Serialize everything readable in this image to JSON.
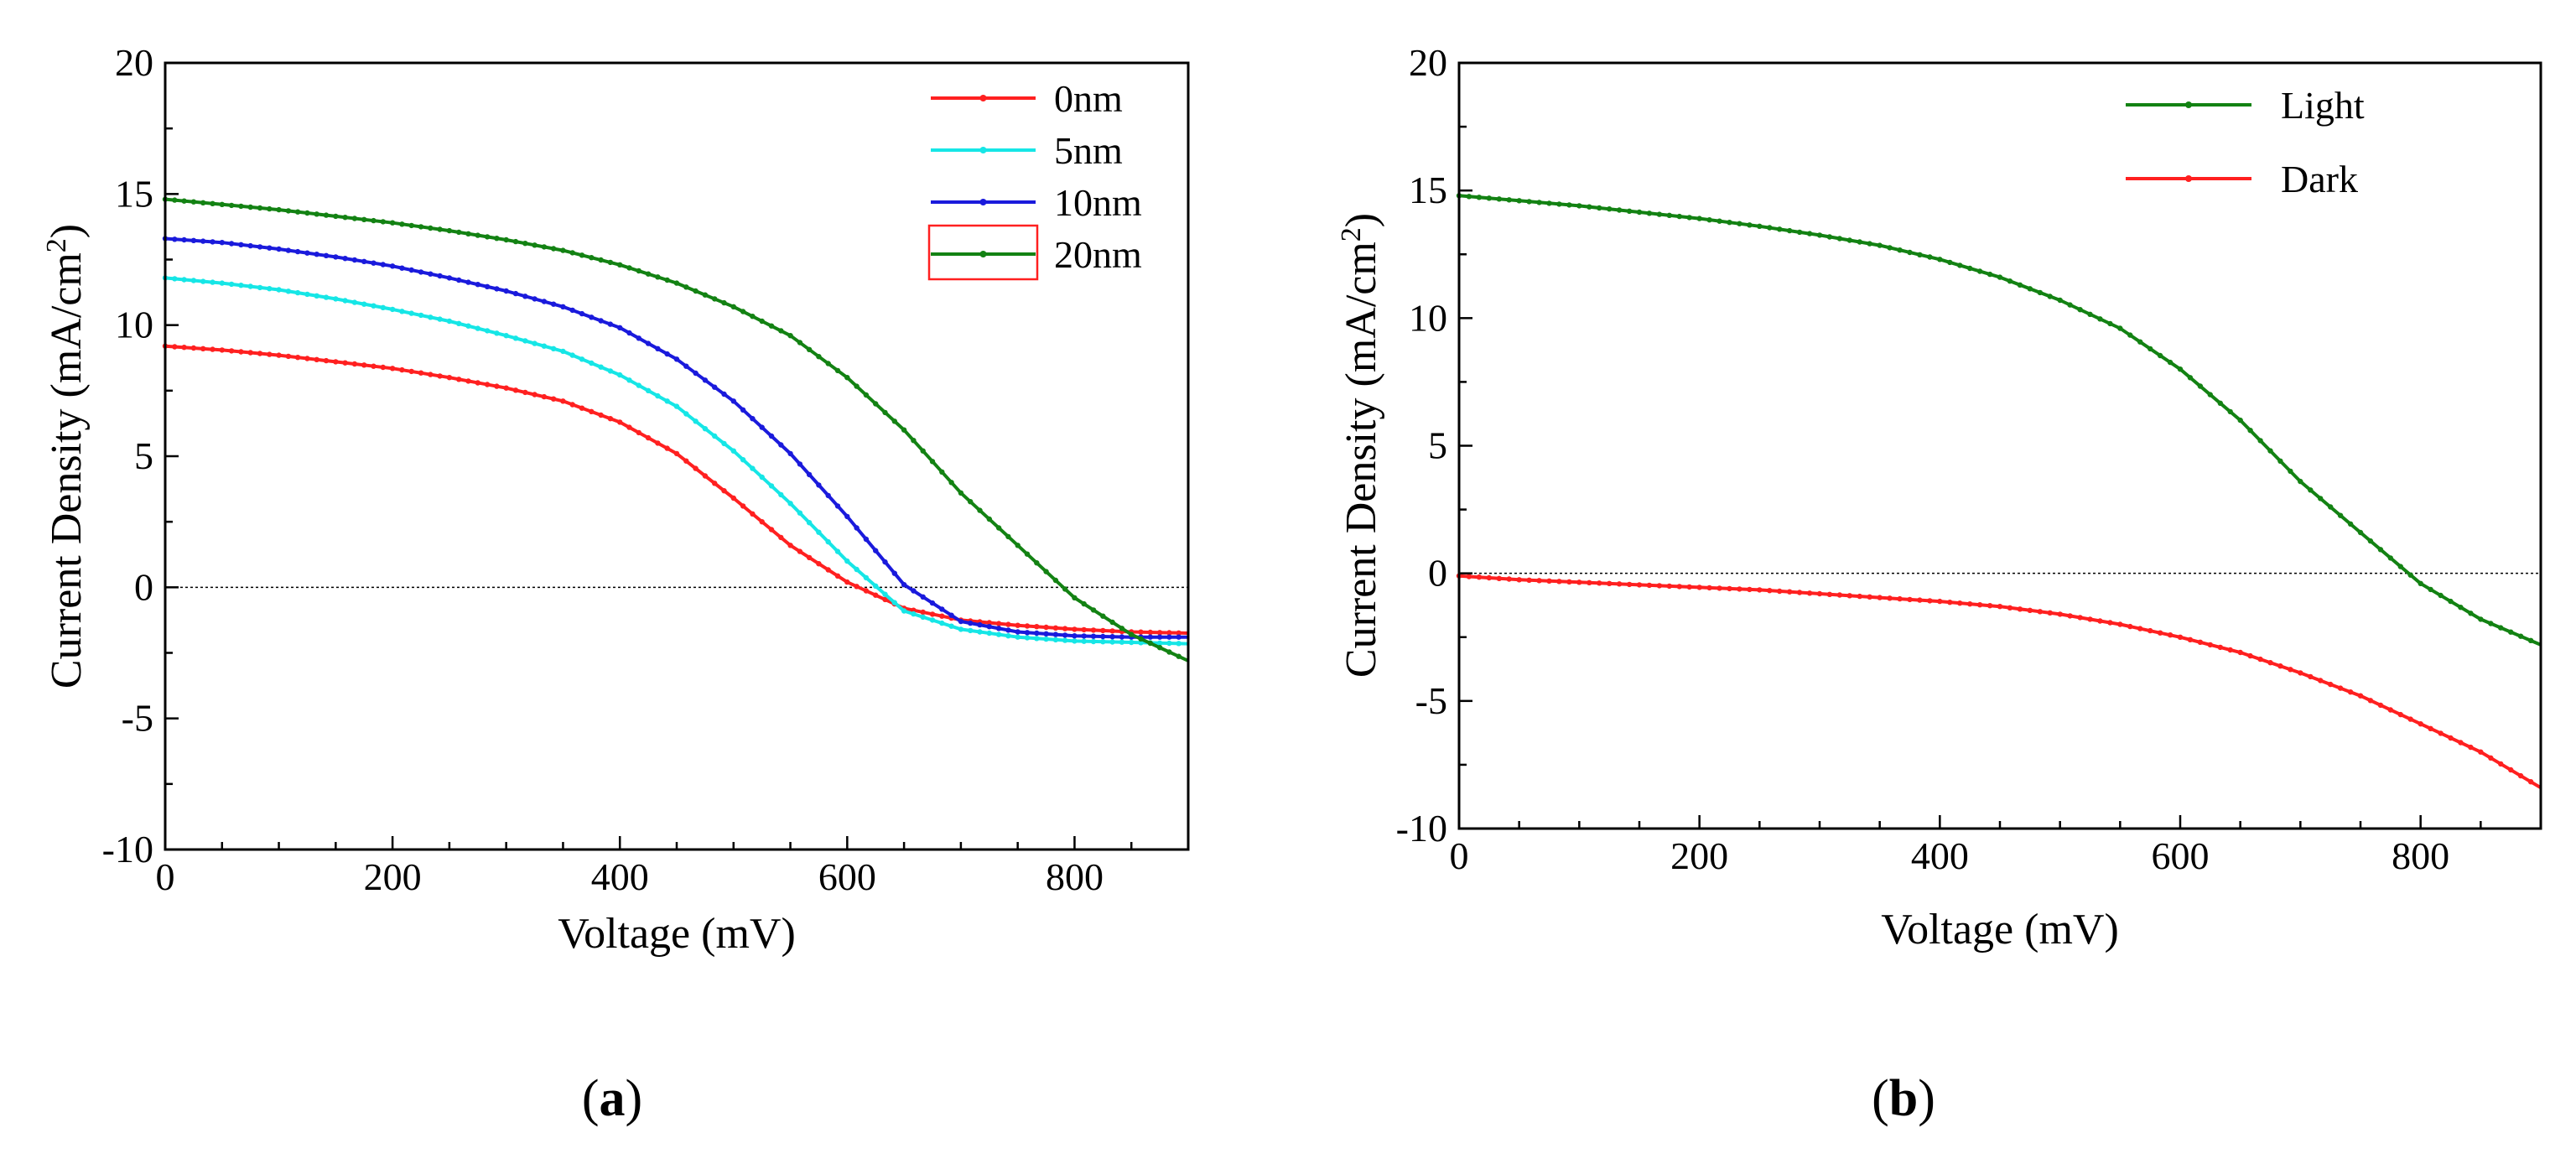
{
  "chart_data": [
    {
      "type": "line",
      "panel_label": "a",
      "xlabel": "Voltage (mV)",
      "ylabel": "Current Density (mA/cm",
      "ylabel_sup": "2",
      "ylabel_close": ")",
      "xlim": [
        0,
        900
      ],
      "ylim": [
        -10,
        20
      ],
      "xticks": [
        0,
        200,
        400,
        600,
        800
      ],
      "yticks": [
        -10,
        -5,
        0,
        5,
        10,
        15,
        20
      ],
      "zero_line": true,
      "legend_position": "top-right",
      "x": [
        0,
        50,
        100,
        150,
        200,
        250,
        300,
        350,
        400,
        450,
        500,
        550,
        600,
        650,
        700,
        750,
        800,
        850,
        900
      ],
      "series": [
        {
          "name": "0nm",
          "color": "#ff2020",
          "values": [
            9.2,
            9.05,
            8.85,
            8.6,
            8.35,
            8.0,
            7.6,
            7.1,
            6.3,
            5.1,
            3.4,
            1.6,
            0.2,
            -0.8,
            -1.25,
            -1.45,
            -1.6,
            -1.7,
            -1.75
          ]
        },
        {
          "name": "5nm",
          "color": "#16e6e6",
          "values": [
            11.8,
            11.6,
            11.35,
            11.0,
            10.6,
            10.15,
            9.6,
            9.0,
            8.1,
            6.9,
            5.2,
            3.2,
            1.0,
            -0.9,
            -1.6,
            -1.9,
            -2.05,
            -2.1,
            -2.15
          ]
        },
        {
          "name": "10nm",
          "color": "#1a1adc",
          "values": [
            13.3,
            13.15,
            12.9,
            12.6,
            12.25,
            11.8,
            11.3,
            10.7,
            9.9,
            8.7,
            7.1,
            5.1,
            2.7,
            0.1,
            -1.3,
            -1.7,
            -1.85,
            -1.9,
            -1.9
          ]
        },
        {
          "name": "20nm",
          "color": "#138213",
          "values": [
            14.8,
            14.6,
            14.4,
            14.15,
            13.9,
            13.6,
            13.25,
            12.85,
            12.3,
            11.6,
            10.7,
            9.6,
            8.0,
            6.0,
            3.6,
            1.6,
            -0.4,
            -1.8,
            -2.8
          ]
        }
      ]
    },
    {
      "type": "line",
      "panel_label": "b",
      "xlabel": "Voltage (mV)",
      "ylabel": "Current Density (mA/cm",
      "ylabel_sup": "2",
      "ylabel_close": ")",
      "xlim": [
        0,
        900
      ],
      "ylim": [
        -10,
        20
      ],
      "xticks": [
        0,
        200,
        400,
        600,
        800
      ],
      "yticks": [
        -10,
        -5,
        0,
        5,
        10,
        15,
        20
      ],
      "zero_line": true,
      "legend_position": "top-right",
      "x": [
        0,
        50,
        100,
        150,
        200,
        250,
        300,
        350,
        400,
        450,
        500,
        550,
        600,
        650,
        700,
        750,
        800,
        850,
        900
      ],
      "series": [
        {
          "name": "Light",
          "color": "#138213",
          "values": [
            14.8,
            14.6,
            14.4,
            14.15,
            13.9,
            13.6,
            13.25,
            12.85,
            12.3,
            11.6,
            10.7,
            9.6,
            8.0,
            6.0,
            3.6,
            1.6,
            -0.4,
            -1.8,
            -2.8
          ]
        },
        {
          "name": "Dark",
          "color": "#ff2020",
          "values": [
            -0.1,
            -0.25,
            -0.35,
            -0.45,
            -0.55,
            -0.65,
            -0.8,
            -0.95,
            -1.1,
            -1.3,
            -1.6,
            -2.0,
            -2.5,
            -3.1,
            -3.9,
            -4.8,
            -5.9,
            -7.0,
            -8.4
          ]
        }
      ]
    }
  ]
}
